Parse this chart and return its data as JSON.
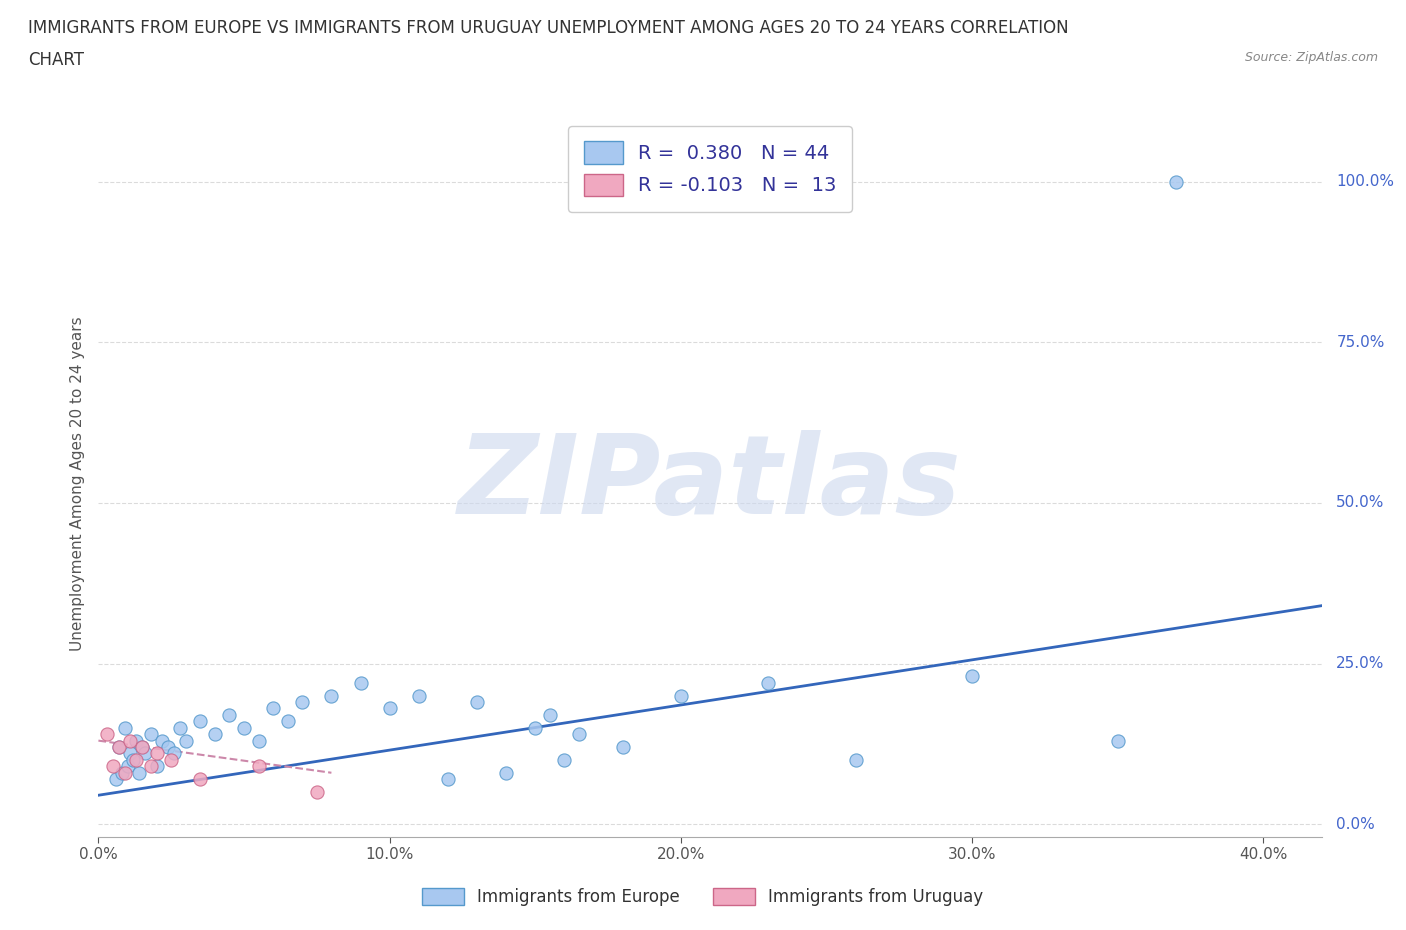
{
  "title_line1": "IMMIGRANTS FROM EUROPE VS IMMIGRANTS FROM URUGUAY UNEMPLOYMENT AMONG AGES 20 TO 24 YEARS CORRELATION",
  "title_line2": "CHART",
  "source": "Source: ZipAtlas.com",
  "ylabel": "Unemployment Among Ages 20 to 24 years",
  "xlabel_ticks": [
    "0.0%",
    "10.0%",
    "20.0%",
    "30.0%",
    "40.0%"
  ],
  "ylabel_ticks": [
    "0.0%",
    "25.0%",
    "50.0%",
    "75.0%",
    "100.0%"
  ],
  "xlim": [
    0.0,
    0.42
  ],
  "ylim": [
    -0.02,
    1.08
  ],
  "watermark_text": "ZIPatlas",
  "legend_europe_R": "R =  0.380",
  "legend_europe_N": "N = 44",
  "legend_uruguay_R": "R = -0.103",
  "legend_uruguay_N": "N =  13",
  "europe_color": "#a8c8f0",
  "uruguay_color": "#f0a8c0",
  "europe_edge_color": "#5599cc",
  "uruguay_edge_color": "#cc6688",
  "europe_line_color": "#3366bb",
  "uruguay_line_color": "#cc88aa",
  "europe_scatter_x": [
    0.006,
    0.007,
    0.008,
    0.009,
    0.01,
    0.011,
    0.012,
    0.013,
    0.014,
    0.015,
    0.016,
    0.018,
    0.02,
    0.022,
    0.024,
    0.026,
    0.028,
    0.03,
    0.035,
    0.04,
    0.045,
    0.05,
    0.055,
    0.06,
    0.065,
    0.07,
    0.08,
    0.09,
    0.1,
    0.11,
    0.12,
    0.13,
    0.14,
    0.15,
    0.155,
    0.16,
    0.165,
    0.18,
    0.2,
    0.23,
    0.26,
    0.3,
    0.35,
    0.37
  ],
  "europe_scatter_y": [
    0.07,
    0.12,
    0.08,
    0.15,
    0.09,
    0.11,
    0.1,
    0.13,
    0.08,
    0.12,
    0.11,
    0.14,
    0.09,
    0.13,
    0.12,
    0.11,
    0.15,
    0.13,
    0.16,
    0.14,
    0.17,
    0.15,
    0.13,
    0.18,
    0.16,
    0.19,
    0.2,
    0.22,
    0.18,
    0.2,
    0.07,
    0.19,
    0.08,
    0.15,
    0.17,
    0.1,
    0.14,
    0.12,
    0.2,
    0.22,
    0.1,
    0.23,
    0.13,
    1.0
  ],
  "uruguay_scatter_x": [
    0.003,
    0.005,
    0.007,
    0.009,
    0.011,
    0.013,
    0.015,
    0.018,
    0.02,
    0.025,
    0.035,
    0.055,
    0.075
  ],
  "uruguay_scatter_y": [
    0.14,
    0.09,
    0.12,
    0.08,
    0.13,
    0.1,
    0.12,
    0.09,
    0.11,
    0.1,
    0.07,
    0.09,
    0.05
  ],
  "europe_trend_x0": 0.0,
  "europe_trend_x1": 0.42,
  "europe_trend_y0": 0.045,
  "europe_trend_y1": 0.34,
  "uruguay_trend_x0": 0.0,
  "uruguay_trend_x1": 0.08,
  "uruguay_trend_y0": 0.13,
  "uruguay_trend_y1": 0.08,
  "background_color": "#ffffff",
  "grid_color": "#cccccc",
  "title_color": "#333333",
  "watermark_color": "#ccd8ee"
}
